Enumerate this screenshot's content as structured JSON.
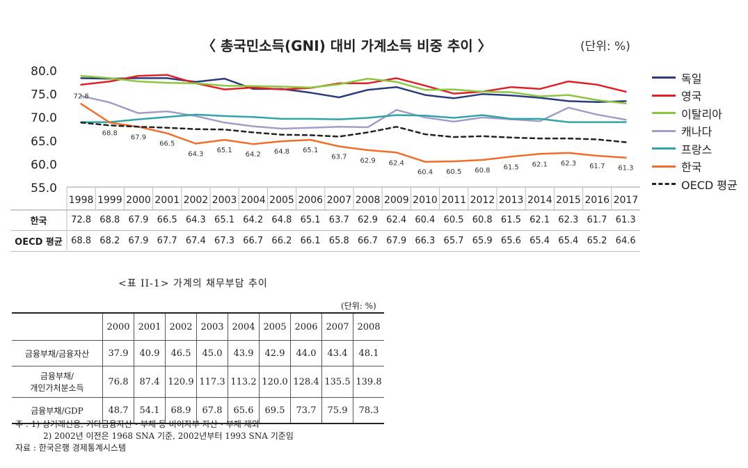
{
  "chart_data": {
    "type": "line",
    "title": "〈 총국민소득(GNI) 대비 가계소득 비중 추이 〉",
    "unit": "(단위: %)",
    "x": [
      "1998",
      "1999",
      "2000",
      "2001",
      "2002",
      "2003",
      "2004",
      "2005",
      "2006",
      "2007",
      "2008",
      "2009",
      "2010",
      "2011",
      "2012",
      "2013",
      "2014",
      "2015",
      "2016",
      "2017"
    ],
    "ylim": [
      55,
      80
    ],
    "yticks": [
      "80.0",
      "75.0",
      "70.0",
      "65.0",
      "60.0",
      "55.0"
    ],
    "legend_position": "right",
    "series": [
      {
        "name": "독일",
        "color": "#2b3a7c",
        "dashed": false,
        "values": [
          78.3,
          78.2,
          78.3,
          78.3,
          77.5,
          78.2,
          76.0,
          76.0,
          75.2,
          74.2,
          75.8,
          76.4,
          74.7,
          74.0,
          74.9,
          74.6,
          74.1,
          73.4,
          73.2,
          73.4
        ]
      },
      {
        "name": "영국",
        "color": "#e02025",
        "dashed": false,
        "values": [
          76.9,
          77.6,
          78.8,
          79.0,
          77.2,
          75.9,
          76.3,
          75.9,
          76.2,
          77.2,
          77.2,
          78.3,
          76.7,
          75.0,
          75.4,
          76.4,
          76.0,
          77.6,
          76.9,
          75.4
        ]
      },
      {
        "name": "이탈리아",
        "color": "#8cc63e",
        "dashed": false,
        "values": [
          78.8,
          78.3,
          77.6,
          77.3,
          77.2,
          76.7,
          76.6,
          76.5,
          76.3,
          77.0,
          78.2,
          77.5,
          75.8,
          75.9,
          75.4,
          75.3,
          74.4,
          74.7,
          73.6,
          72.9
        ]
      },
      {
        "name": "캐나다",
        "color": "#a49cc8",
        "dashed": false,
        "values": [
          74.5,
          73.1,
          70.8,
          71.2,
          70.2,
          68.8,
          68.0,
          67.5,
          67.7,
          67.9,
          67.8,
          71.5,
          69.9,
          69.0,
          69.9,
          69.5,
          69.1,
          72.0,
          70.5,
          69.4
        ]
      },
      {
        "name": "프랑스",
        "color": "#2fa5a8",
        "dashed": false,
        "values": [
          68.9,
          68.9,
          69.5,
          70.0,
          70.5,
          70.2,
          70.0,
          69.6,
          69.6,
          69.5,
          69.8,
          70.4,
          70.3,
          69.8,
          70.4,
          69.6,
          69.6,
          68.9,
          68.9,
          68.9
        ]
      },
      {
        "name": "한국",
        "color": "#f06d2a",
        "dashed": false,
        "values": [
          72.8,
          68.8,
          67.9,
          66.5,
          64.3,
          65.1,
          64.2,
          64.8,
          65.1,
          63.7,
          62.9,
          62.4,
          60.4,
          60.5,
          60.8,
          61.5,
          62.1,
          62.3,
          61.7,
          61.3
        ]
      },
      {
        "name": "OECD 평균",
        "color": "#222222",
        "dashed": true,
        "values": [
          68.8,
          68.2,
          67.9,
          67.7,
          67.4,
          67.3,
          66.7,
          66.2,
          66.1,
          65.8,
          66.7,
          67.9,
          66.3,
          65.7,
          65.9,
          65.6,
          65.4,
          65.4,
          65.2,
          64.6
        ]
      }
    ],
    "korea_labels": [
      "72.8",
      "68.8",
      "67.9",
      "66.5",
      "64.3",
      "65.1",
      "64.2",
      "64.8",
      "65.1",
      "63.7",
      "62.9",
      "62.4",
      "60.4",
      "60.5",
      "60.8",
      "61.5",
      "62.1",
      "62.3",
      "61.7",
      "61.3"
    ]
  },
  "data_table": {
    "rows": [
      {
        "label": "한국",
        "values": [
          "72.8",
          "68.8",
          "67.9",
          "66.5",
          "64.3",
          "65.1",
          "64.2",
          "64.8",
          "65.1",
          "63.7",
          "62.9",
          "62.4",
          "60.4",
          "60.5",
          "60.8",
          "61.5",
          "62.1",
          "62.3",
          "61.7",
          "61.3"
        ]
      },
      {
        "label": "OECD 평균",
        "values": [
          "68.8",
          "68.2",
          "67.9",
          "67.7",
          "67.4",
          "67.3",
          "66.7",
          "66.2",
          "66.1",
          "65.8",
          "66.7",
          "67.9",
          "66.3",
          "65.7",
          "65.9",
          "65.6",
          "65.4",
          "65.4",
          "65.2",
          "64.6"
        ]
      }
    ]
  },
  "table2": {
    "caption": "<표 II-1> 가계의 채무부담 추이",
    "unit": "(단위: %)",
    "years": [
      "2000",
      "2001",
      "2002",
      "2003",
      "2004",
      "2005",
      "2006",
      "2007",
      "2008"
    ],
    "rows": [
      {
        "label": "금융부채/금융자산",
        "values": [
          "37.9",
          "40.9",
          "46.5",
          "45.0",
          "43.9",
          "42.9",
          "44.0",
          "43.4",
          "48.1"
        ]
      },
      {
        "label": "금융부채/",
        "label2": "개인가처분소득",
        "values": [
          "76.8",
          "87.4",
          "120.9",
          "117.3",
          "113.2",
          "120.0",
          "128.4",
          "135.5",
          "139.8"
        ]
      },
      {
        "label": "금융부채/GDP",
        "values": [
          "48.7",
          "54.1",
          "68.9",
          "67.8",
          "65.6",
          "69.5",
          "73.7",
          "75.9",
          "78.3"
        ]
      }
    ],
    "notes": [
      "주 : 1) 상거래신용, 기타금융자산・부채 등 비이자부 자산・부채 제외",
      "2) 2002년 이전은 1968 SNA 기준, 2002년부터 1993 SNA 기준임",
      "자료 : 한국은행 경제통계시스템"
    ]
  }
}
